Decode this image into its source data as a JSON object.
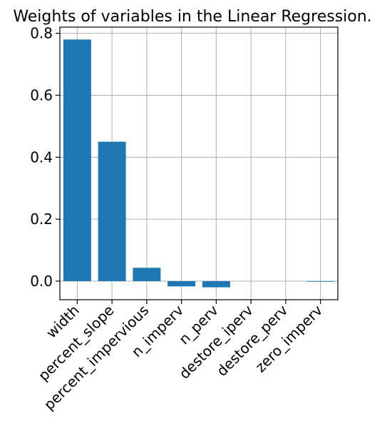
{
  "chart_data": {
    "type": "bar",
    "title": "Weights of variables in the Linear Regression.",
    "xlabel": "",
    "ylabel": "",
    "categories": [
      "width",
      "percent_slope",
      "percent_impervious",
      "n_imperv",
      "n_perv",
      "destore_iperv",
      "destore_perv",
      "zero_imperv"
    ],
    "values": [
      0.78,
      0.45,
      0.043,
      -0.017,
      -0.02,
      0.0,
      0.0,
      -0.002
    ],
    "ylim": [
      -0.06,
      0.82
    ],
    "yticks": [
      0.0,
      0.2,
      0.4,
      0.6,
      0.8
    ],
    "ytick_labels": [
      "0.0",
      "0.2",
      "0.4",
      "0.6",
      "0.8"
    ],
    "grid": true,
    "bar_color": "#1f77b4",
    "grid_color": "#b0b0b0"
  }
}
